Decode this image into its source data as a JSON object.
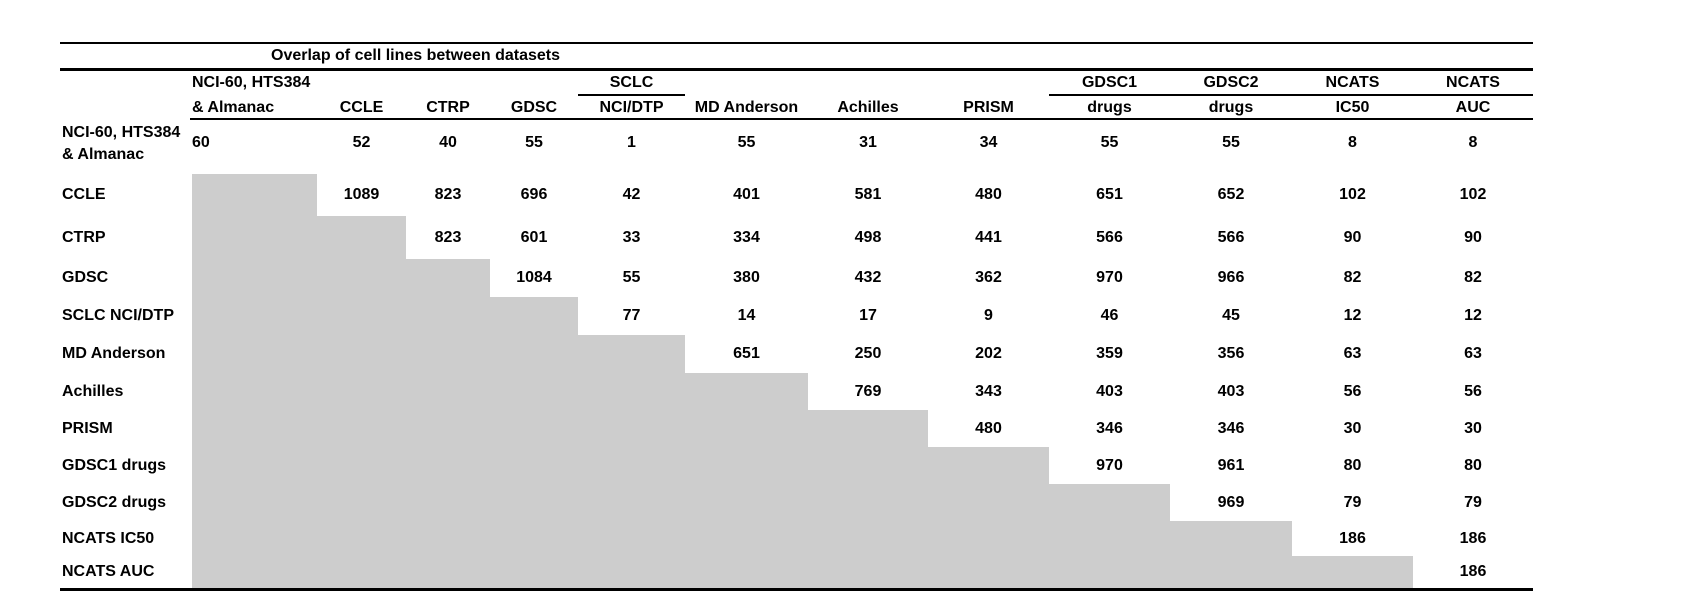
{
  "colors": {
    "text": "#000000",
    "rule": "#000000",
    "shaded_cell": "#cdcdcd",
    "background": "#ffffff"
  },
  "table": {
    "title": "Overlap of cell lines between datasets",
    "columns": [
      {
        "key": "nci60-hts384-almanac",
        "line1": "NCI-60, HTS384",
        "line2": "& Almanac",
        "align": "left",
        "underline_line1": false
      },
      {
        "key": "ccle",
        "line1": "",
        "line2": "CCLE",
        "align": "center",
        "underline_line1": false
      },
      {
        "key": "ctrp",
        "line1": "",
        "line2": "CTRP",
        "align": "center",
        "underline_line1": false
      },
      {
        "key": "gdsc",
        "line1": "",
        "line2": "GDSC",
        "align": "center",
        "underline_line1": false
      },
      {
        "key": "sclc-nci-dtp",
        "line1": "SCLC",
        "line2": "NCI/DTP",
        "align": "center",
        "underline_line1": true
      },
      {
        "key": "md-anderson",
        "line1": "",
        "line2": "MD Anderson",
        "align": "center",
        "underline_line1": false
      },
      {
        "key": "achilles",
        "line1": "",
        "line2": "Achilles",
        "align": "center",
        "underline_line1": false
      },
      {
        "key": "prism",
        "line1": "",
        "line2": "PRISM",
        "align": "center",
        "underline_line1": false
      },
      {
        "key": "gdsc1-drugs",
        "line1": "GDSC1",
        "line2": "drugs",
        "align": "center",
        "underline_line1": true
      },
      {
        "key": "gdsc2-drugs",
        "line1": "GDSC2",
        "line2": "drugs",
        "align": "center",
        "underline_line1": true
      },
      {
        "key": "ncats-ic50",
        "line1": "NCATS",
        "line2": "IC50",
        "align": "center",
        "underline_line1": true
      },
      {
        "key": "ncats-auc",
        "line1": "NCATS",
        "line2": "AUC",
        "align": "center",
        "underline_line1": true
      }
    ],
    "rows": [
      {
        "key": "nci60-hts384-almanac",
        "label_lines": [
          "NCI-60, HTS384",
          "& Almanac"
        ],
        "values": [
          60,
          52,
          40,
          55,
          1,
          55,
          31,
          34,
          55,
          55,
          8,
          8
        ]
      },
      {
        "key": "ccle",
        "label_lines": [
          "CCLE"
        ],
        "values": [
          null,
          1089,
          823,
          696,
          42,
          401,
          581,
          480,
          651,
          652,
          102,
          102
        ]
      },
      {
        "key": "ctrp",
        "label_lines": [
          "CTRP"
        ],
        "values": [
          null,
          null,
          823,
          601,
          33,
          334,
          498,
          441,
          566,
          566,
          90,
          90
        ]
      },
      {
        "key": "gdsc",
        "label_lines": [
          "GDSC"
        ],
        "values": [
          null,
          null,
          null,
          1084,
          55,
          380,
          432,
          362,
          970,
          966,
          82,
          82
        ]
      },
      {
        "key": "sclc-nci-dtp",
        "label_lines": [
          "SCLC NCI/DTP"
        ],
        "values": [
          null,
          null,
          null,
          null,
          77,
          14,
          17,
          9,
          46,
          45,
          12,
          12
        ]
      },
      {
        "key": "md-anderson",
        "label_lines": [
          "MD Anderson"
        ],
        "values": [
          null,
          null,
          null,
          null,
          null,
          651,
          250,
          202,
          359,
          356,
          63,
          63
        ]
      },
      {
        "key": "achilles",
        "label_lines": [
          "Achilles"
        ],
        "values": [
          null,
          null,
          null,
          null,
          null,
          null,
          769,
          343,
          403,
          403,
          56,
          56
        ]
      },
      {
        "key": "prism",
        "label_lines": [
          "PRISM"
        ],
        "values": [
          null,
          null,
          null,
          null,
          null,
          null,
          null,
          480,
          346,
          346,
          30,
          30
        ]
      },
      {
        "key": "gdsc1-drugs",
        "label_lines": [
          "GDSC1 drugs"
        ],
        "values": [
          null,
          null,
          null,
          null,
          null,
          null,
          null,
          null,
          970,
          961,
          80,
          80
        ]
      },
      {
        "key": "gdsc2-drugs",
        "label_lines": [
          "GDSC2 drugs"
        ],
        "values": [
          null,
          null,
          null,
          null,
          null,
          null,
          null,
          null,
          null,
          969,
          79,
          79
        ]
      },
      {
        "key": "ncats-ic50",
        "label_lines": [
          "NCATS IC50"
        ],
        "values": [
          null,
          null,
          null,
          null,
          null,
          null,
          null,
          null,
          null,
          null,
          186,
          186
        ]
      },
      {
        "key": "ncats-auc",
        "label_lines": [
          "NCATS AUC"
        ],
        "values": [
          null,
          null,
          null,
          null,
          null,
          null,
          null,
          null,
          null,
          null,
          null,
          186
        ]
      }
    ]
  }
}
